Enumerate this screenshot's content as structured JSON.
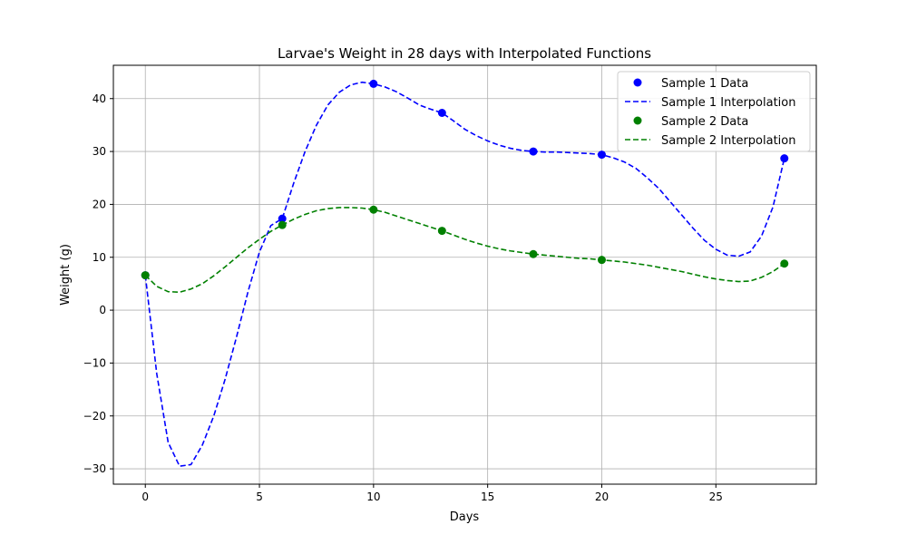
{
  "chart_data": {
    "type": "line",
    "title": "Larvae's Weight in 28 days with Interpolated Functions",
    "xlabel": "Days",
    "ylabel": "Weight (g)",
    "xlim": [
      -1.4,
      29.4
    ],
    "ylim": [
      -32.9,
      46.3
    ],
    "xticks": [
      0,
      5,
      10,
      15,
      20,
      25
    ],
    "yticks": [
      -30,
      -20,
      -10,
      0,
      10,
      20,
      30,
      40
    ],
    "grid": true,
    "legend_position": "top-right",
    "series": [
      {
        "name": "Sample 1 Data",
        "kind": "scatter",
        "color": "#0000ff",
        "x": [
          0,
          6,
          10,
          13,
          17,
          20,
          28
        ],
        "y": [
          6.6,
          17.3,
          42.8,
          37.3,
          30.0,
          29.4,
          28.7
        ]
      },
      {
        "name": "Sample 1 Interpolation",
        "kind": "line",
        "style": "dashed",
        "color": "#0000ff",
        "x": [
          0,
          0.5,
          1,
          1.5,
          2,
          2.5,
          3,
          3.5,
          4,
          4.5,
          5,
          5.5,
          6,
          6.5,
          7,
          7.5,
          8,
          8.5,
          9,
          9.5,
          10,
          10.5,
          11,
          11.5,
          12,
          12.5,
          13,
          13.5,
          14,
          14.5,
          15,
          15.5,
          16,
          16.5,
          17,
          17.5,
          18,
          18.5,
          19,
          19.5,
          20,
          20.5,
          21,
          21.5,
          22,
          22.5,
          23,
          23.5,
          24,
          24.5,
          25,
          25.5,
          26,
          26.5,
          27,
          27.5,
          28
        ],
        "y": [
          6.6,
          -12,
          -25,
          -29.5,
          -29.2,
          -25.5,
          -20,
          -13,
          -5,
          3.5,
          11,
          16,
          17.3,
          24,
          30,
          35,
          38.8,
          41.2,
          42.6,
          43.1,
          42.8,
          42.2,
          41.3,
          40.1,
          38.8,
          38,
          37.3,
          35.8,
          34.2,
          33,
          32,
          31.2,
          30.6,
          30.2,
          30.0,
          29.9,
          29.9,
          29.8,
          29.7,
          29.6,
          29.4,
          28.8,
          28,
          26.8,
          25,
          23,
          20.5,
          18,
          15.5,
          13.2,
          11.5,
          10.4,
          10.2,
          11,
          14,
          19.5,
          28.7
        ]
      },
      {
        "name": "Sample 2 Data",
        "kind": "scatter",
        "color": "#008000",
        "x": [
          0,
          6,
          10,
          13,
          17,
          20,
          28
        ],
        "y": [
          6.6,
          16.1,
          19.0,
          15.0,
          10.6,
          9.5,
          8.8
        ]
      },
      {
        "name": "Sample 2 Interpolation",
        "kind": "line",
        "style": "dashed",
        "color": "#008000",
        "x": [
          0,
          0.5,
          1,
          1.5,
          2,
          2.5,
          3,
          3.5,
          4,
          4.5,
          5,
          5.5,
          6,
          6.5,
          7,
          7.5,
          8,
          8.5,
          9,
          9.5,
          10,
          10.5,
          11,
          11.5,
          12,
          12.5,
          13,
          13.5,
          14,
          14.5,
          15,
          15.5,
          16,
          16.5,
          17,
          17.5,
          18,
          18.5,
          19,
          19.5,
          20,
          20.5,
          21,
          21.5,
          22,
          22.5,
          23,
          23.5,
          24,
          24.5,
          25,
          25.5,
          26,
          26.5,
          27,
          27.5,
          28
        ],
        "y": [
          6.6,
          4.5,
          3.5,
          3.4,
          4,
          5,
          6.5,
          8.2,
          10,
          11.8,
          13.4,
          14.9,
          16.1,
          17.2,
          18.1,
          18.8,
          19.2,
          19.4,
          19.4,
          19.3,
          19.0,
          18.5,
          17.8,
          17.1,
          16.4,
          15.7,
          15.0,
          14.2,
          13.4,
          12.7,
          12.1,
          11.6,
          11.2,
          10.9,
          10.6,
          10.4,
          10.2,
          10.0,
          9.8,
          9.7,
          9.5,
          9.3,
          9.1,
          8.8,
          8.5,
          8.1,
          7.7,
          7.3,
          6.8,
          6.3,
          5.9,
          5.6,
          5.4,
          5.5,
          6.2,
          7.3,
          8.8
        ]
      }
    ]
  }
}
